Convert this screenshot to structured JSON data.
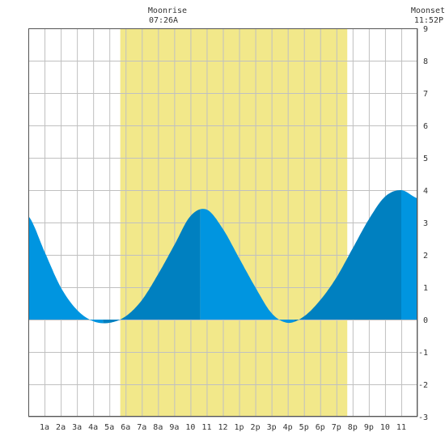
{
  "moonrise": {
    "label": "Moonrise",
    "time": "07:26A"
  },
  "moonset": {
    "label": "Moonset",
    "time": "11:52P"
  },
  "colors": {
    "daylight": "#f2e88a",
    "tide_light": "#0095e0",
    "tide_dark": "#0080c0",
    "grid": "#c0c0c0",
    "frame": "#555555",
    "text": "#333333"
  },
  "chart_data": {
    "type": "area",
    "title": "",
    "xlabel": "",
    "ylabel": "",
    "xlim": [
      0.0,
      24.0
    ],
    "ylim": [
      -3,
      9
    ],
    "y_ticks": [
      -3,
      -2,
      -1,
      0,
      1,
      2,
      3,
      4,
      5,
      6,
      7,
      8,
      9
    ],
    "x_tick_labels": [
      "1a",
      "2a",
      "3a",
      "4a",
      "5a",
      "6a",
      "7a",
      "8a",
      "9a",
      "10",
      "11",
      "12",
      "1p",
      "2p",
      "3p",
      "4p",
      "5p",
      "6p",
      "7p",
      "8p",
      "9p",
      "10",
      "11"
    ],
    "daylight": {
      "start": 5.67,
      "end": 19.67
    },
    "tide_extremes": [
      {
        "time": 4.6,
        "height": -0.1,
        "kind": "low"
      },
      {
        "time": 10.6,
        "height": 3.45,
        "kind": "high"
      },
      {
        "time": 16.4,
        "height": -0.1,
        "kind": "low"
      },
      {
        "time": 23.0,
        "height": 4.0,
        "kind": "high"
      }
    ],
    "series": [
      {
        "x": [
          0,
          1,
          2,
          3,
          4,
          5,
          6,
          7,
          8,
          9,
          10,
          11,
          12,
          13,
          14,
          15,
          16,
          17,
          18,
          19,
          20,
          21,
          22,
          23,
          24
        ],
        "values": [
          3.2,
          2.1,
          1.0,
          0.3,
          -0.05,
          -0.1,
          0.1,
          0.6,
          1.4,
          2.3,
          3.2,
          3.4,
          2.8,
          1.9,
          1.0,
          0.2,
          -0.1,
          0.1,
          0.6,
          1.3,
          2.2,
          3.1,
          3.8,
          4.0,
          3.75
        ]
      }
    ]
  }
}
